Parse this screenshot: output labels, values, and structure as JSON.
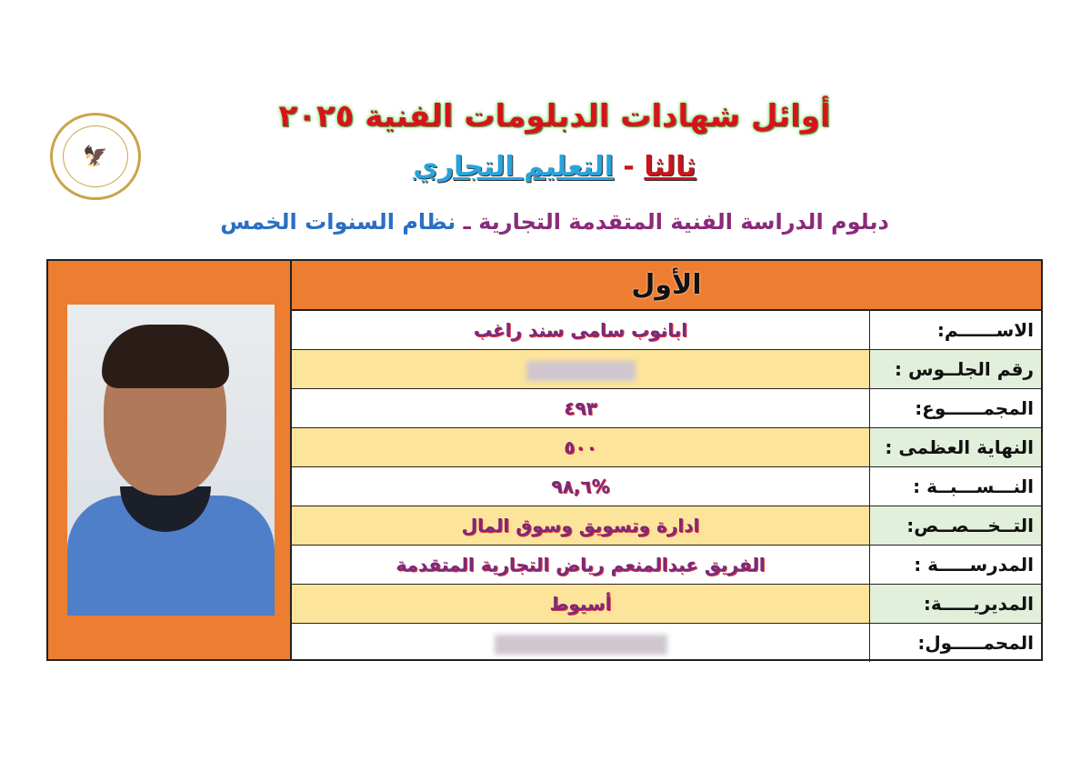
{
  "header": {
    "title": "أوائل شهادات الدبلومات الفنية ٢٠٢٥",
    "section_ordinal": "ثالثا",
    "section_sep": " - ",
    "section_name": "التعليم التجاري",
    "diploma_part1": "دبلوم الدراسة الفنية المتقدمة التجارية",
    "diploma_sep": " ـ ",
    "diploma_part2": "نظام السنوات الخمس"
  },
  "logo": {
    "text": "MINISTRY OF EDUCATION AND TECHNICAL EDUCATION",
    "icon": "eagle-emblem"
  },
  "card": {
    "rank": "الأول",
    "fields": [
      {
        "label": "الاســــــم:",
        "value": "ابانوب سامى سند راغب"
      },
      {
        "label": "رقم الجلــوس :",
        "value": "",
        "blurred": true
      },
      {
        "label": "المجمــــــوع:",
        "value": "٤٩٣"
      },
      {
        "label": "النهاية العظمى :",
        "value": "٥٠٠"
      },
      {
        "label": "النـــســـبــة :",
        "value": "%٩٨,٦"
      },
      {
        "label": "التــخـــصــص:",
        "value": "ادارة وتسويق وسوق المال"
      },
      {
        "label": "المدرســـــة :",
        "value": "الفريق عبدالمنعم رياض التجارية المتقدمة"
      },
      {
        "label": "المديريـــــة:",
        "value": "أسيوط"
      },
      {
        "label": "المحمـــــول:",
        "value": "",
        "blurred": true
      }
    ]
  },
  "colors": {
    "orange": "#ed7d31",
    "label_alt": "#e2efda",
    "value_alt": "#fde49b",
    "title_red": "#d8121d",
    "blue": "#29a3dc"
  }
}
